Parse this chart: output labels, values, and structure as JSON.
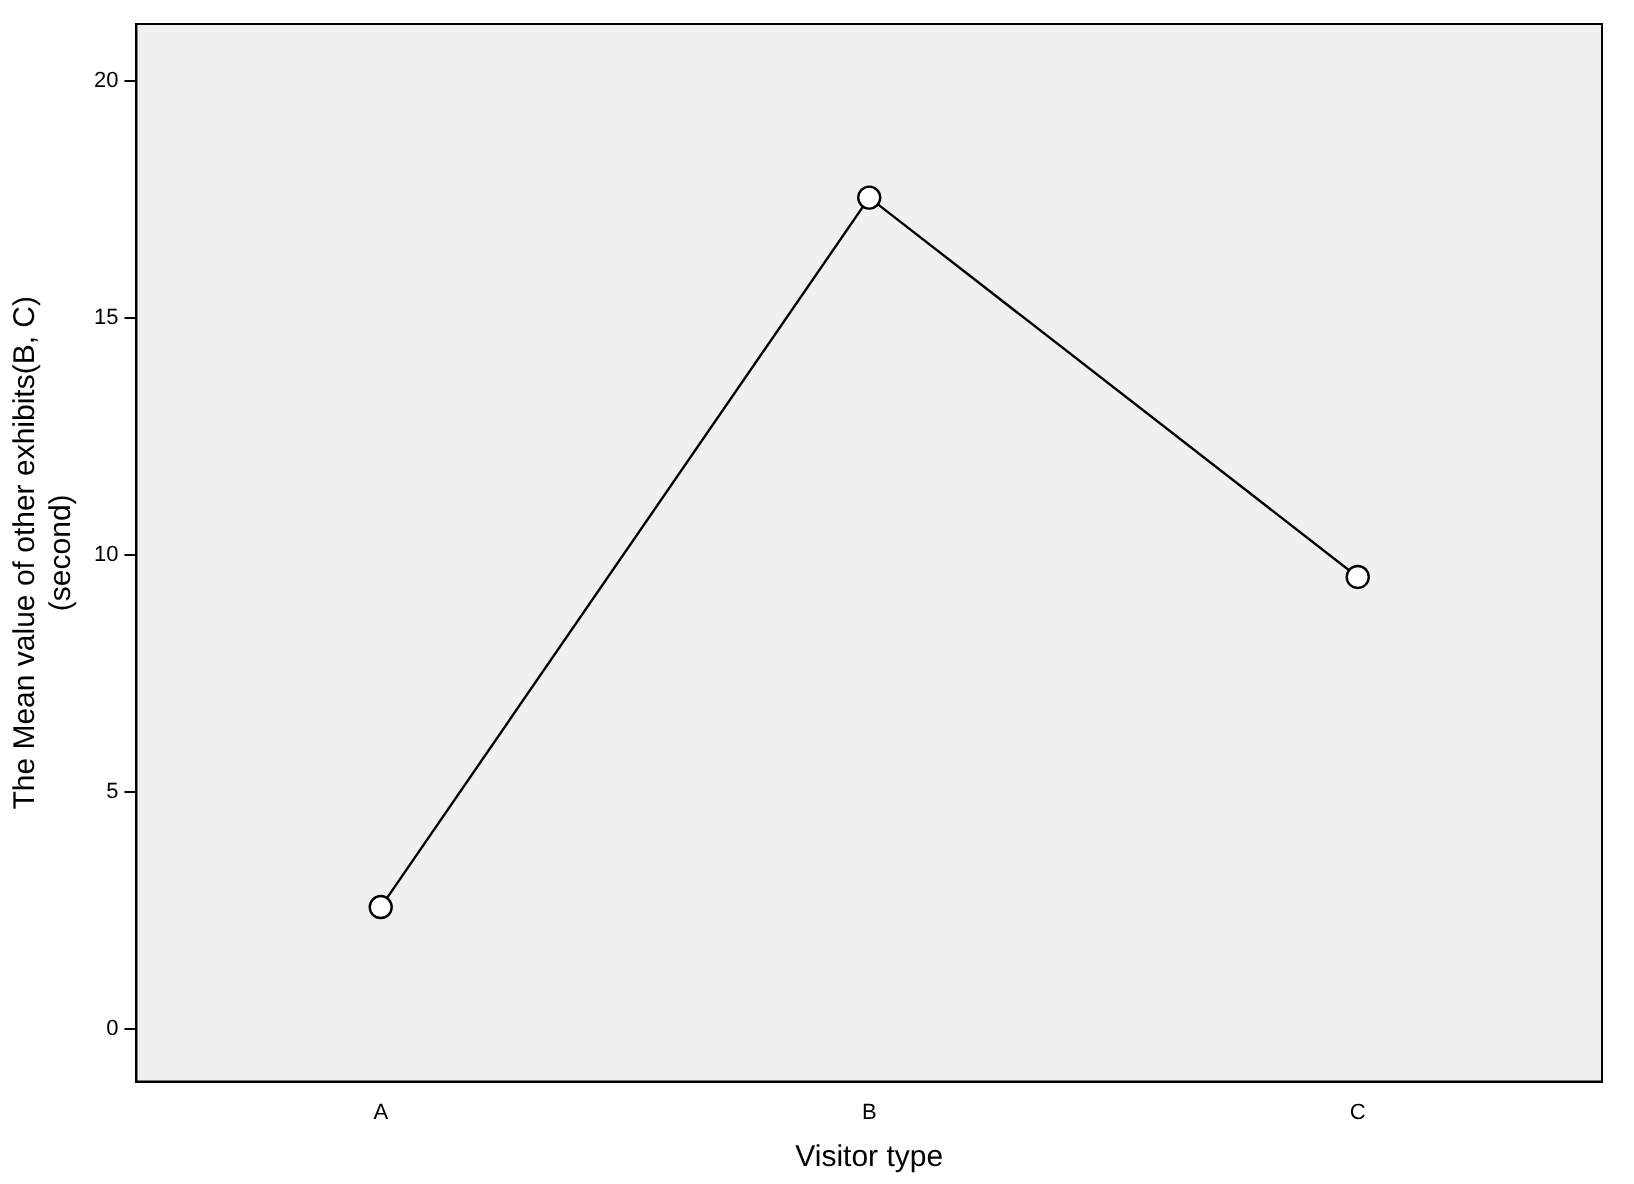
{
  "chart_data": {
    "type": "line",
    "xlabel": "Visitor type",
    "ylabel": "The Mean value of other exhibits(B, C)\n(second)",
    "categories": [
      "A",
      "B",
      "C"
    ],
    "series": [
      {
        "color": "#000000",
        "values": [
          2.58,
          17.54,
          9.54
        ]
      }
    ],
    "ylim": [
      -1.1,
      21.2
    ],
    "yticks": [
      0,
      5,
      10,
      15,
      20
    ],
    "grid": false,
    "legend": false,
    "marker": "circle",
    "line_style": "solid"
  }
}
